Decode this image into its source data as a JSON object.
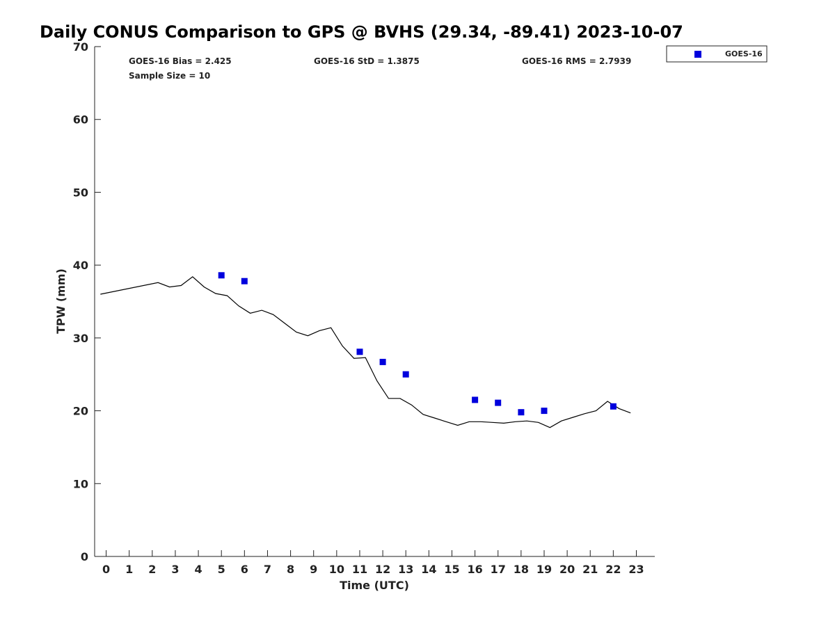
{
  "chart_data": {
    "type": "scatter",
    "title": "Daily CONUS Comparison to GPS @ BVHS (29.34, -89.41) 2023-10-07",
    "xlabel": "Time (UTC)",
    "ylabel": "TPW (mm)",
    "xlim": [
      -0.5,
      23.8
    ],
    "ylim": [
      0,
      70
    ],
    "x_ticks": [
      0,
      1,
      2,
      3,
      4,
      5,
      6,
      7,
      8,
      9,
      10,
      11,
      12,
      13,
      14,
      15,
      16,
      17,
      18,
      19,
      20,
      21,
      22,
      23
    ],
    "x_tick_labels": [
      "0",
      "1",
      "2",
      "3",
      "4",
      "5",
      "6",
      "7",
      "8",
      "9",
      "10",
      "11",
      "12",
      "13",
      "14",
      "15",
      "16",
      "17",
      "18",
      "19",
      "20",
      "21",
      "22",
      "23"
    ],
    "y_ticks": [
      0,
      10,
      20,
      30,
      40,
      50,
      60,
      70
    ],
    "y_tick_labels": [
      "0",
      "10",
      "20",
      "30",
      "40",
      "50",
      "60",
      "70"
    ],
    "grid": false,
    "legend_position": "top-right, outside plot",
    "series": [
      {
        "name": "GOES-16",
        "kind": "scatter",
        "marker": "square",
        "color": "#0000dd",
        "x": [
          5,
          6,
          11,
          12,
          13,
          16,
          17,
          18,
          19,
          22
        ],
        "y": [
          38.6,
          37.8,
          28.1,
          26.7,
          25.0,
          21.5,
          21.1,
          19.8,
          20.0,
          20.6
        ]
      },
      {
        "kind": "line",
        "color": "#000000",
        "x": [
          -0.25,
          2.25,
          2.75,
          3.25,
          3.75,
          4.25,
          4.75,
          5.25,
          5.75,
          6.25,
          6.75,
          7.25,
          7.75,
          8.25,
          8.75,
          9.25,
          9.75,
          10.25,
          10.75,
          11.25,
          11.75,
          12.25,
          12.75,
          13.25,
          13.75,
          14.25,
          14.75,
          15.25,
          15.75,
          16.25,
          16.75,
          17.25,
          17.75,
          18.25,
          18.75,
          19.25,
          19.75,
          20.25,
          20.75,
          21.25,
          21.75,
          22.25,
          22.75
        ],
        "y": [
          36.0,
          37.6,
          37.0,
          37.2,
          38.4,
          37.0,
          36.1,
          35.8,
          34.4,
          33.4,
          33.8,
          33.2,
          32.0,
          30.8,
          30.3,
          31.0,
          31.4,
          28.9,
          27.2,
          27.3,
          24.1,
          21.7,
          21.7,
          20.8,
          19.5,
          19.0,
          18.5,
          18.0,
          18.5,
          18.5,
          18.4,
          18.3,
          18.5,
          18.6,
          18.4,
          17.7,
          18.6,
          19.1,
          19.6,
          20.0,
          21.3,
          20.3,
          19.7
        ]
      }
    ],
    "annotations": [
      {
        "label": "GOES-16 Bias = 2.425",
        "position": "top-left"
      },
      {
        "label": "GOES-16 StD = 1.3875",
        "position": "top-center"
      },
      {
        "label": "GOES-16 RMS = 2.7939",
        "position": "top-right"
      },
      {
        "label": "Sample Size = 10",
        "position": "top-left, second line"
      }
    ]
  }
}
